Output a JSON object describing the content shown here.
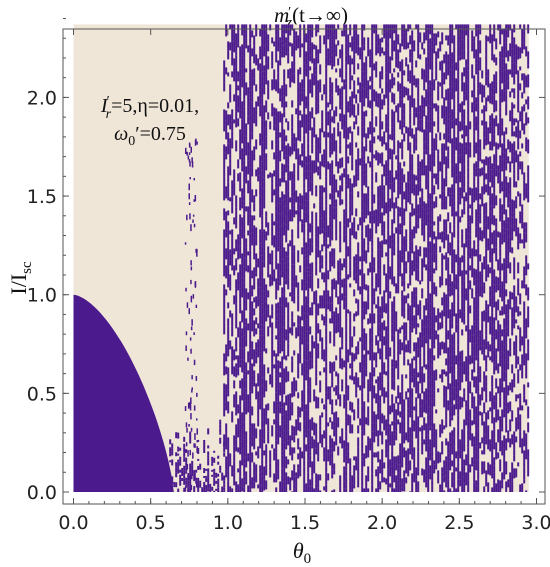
{
  "chart_data": {
    "type": "heatmap",
    "title": "m′z(t→∞)",
    "title_parts": {
      "m": "m",
      "prime": "′",
      "sub": "z",
      "rest": "(t→∞)"
    },
    "xlabel": "θ0",
    "xlabel_parts": {
      "main": "θ",
      "sub": "0"
    },
    "ylabel": "I/Isc",
    "ylabel_parts": {
      "main": "I/I",
      "sub": "sc"
    },
    "xlim": [
      0.0,
      3.0
    ],
    "ylim": [
      0.0,
      2.4
    ],
    "x_data_range": [
      0.0,
      2.95
    ],
    "y_data_range": [
      0.0,
      2.37
    ],
    "x_ticks": [
      {
        "value": 0.0,
        "label": "0.0"
      },
      {
        "value": 0.5,
        "label": "0.5"
      },
      {
        "value": 1.0,
        "label": "1.0"
      },
      {
        "value": 1.5,
        "label": "1.5"
      },
      {
        "value": 2.0,
        "label": "2.0"
      },
      {
        "value": 2.5,
        "label": "2.5"
      },
      {
        "value": 3.0,
        "label": "3.0"
      }
    ],
    "y_ticks": [
      {
        "value": 0.0,
        "label": "0.0"
      },
      {
        "value": 0.5,
        "label": "0.5"
      },
      {
        "value": 1.0,
        "label": "1.0"
      },
      {
        "value": 1.5,
        "label": "1.5"
      },
      {
        "value": 2.0,
        "label": "2.0"
      }
    ],
    "annotation": {
      "line1": {
        "I": "I",
        "prime": "′",
        "sub": "r",
        "rest": "=5,η=0.01,"
      },
      "line2": {
        "omega": "ω",
        "sub": "0",
        "rest": "′=0.75"
      }
    },
    "colors": {
      "high": "#efe6d8",
      "low": "#4b1a8c",
      "frame": "#555555"
    },
    "regions": {
      "low_region_boundary_at_y0_theta": 0.65,
      "low_region_peak_I": 1.0,
      "chaotic_onset_theta": 0.97,
      "sparse_band_theta": [
        0.72,
        0.8
      ]
    }
  }
}
